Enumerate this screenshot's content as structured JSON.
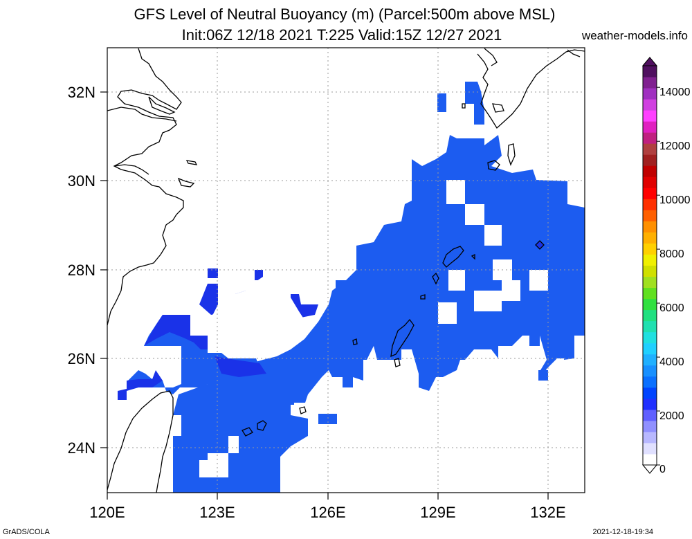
{
  "title_line1": "GFS Level of Neutral Buoyancy (m) (Parcel:500m above MSL)",
  "title_line2": "Init:06Z 12/18 2021 T:225 Valid:15Z 12/27 2021",
  "site": "weather-models.info",
  "footer_left": "GrADS/COLA",
  "footer_right": "2021-12-18-19:34",
  "lon_labels": [
    "120E",
    "123E",
    "126E",
    "129E",
    "132E"
  ],
  "lat_labels": [
    "24N",
    "26N",
    "28N",
    "30N",
    "32N"
  ],
  "colorbar": {
    "labels": [
      "0",
      "2000",
      "4000",
      "6000",
      "8000",
      "10000",
      "12000",
      "14000"
    ],
    "colors": [
      "#ffffff",
      "#e0e0ff",
      "#b8b8ff",
      "#9090ff",
      "#6060ff",
      "#2030ff",
      "#0044ff",
      "#0a70ff",
      "#1890ff",
      "#20b0ff",
      "#20d0ff",
      "#20e0e0",
      "#20e0b0",
      "#20e080",
      "#30e040",
      "#60e020",
      "#a0e020",
      "#d0e000",
      "#f0f000",
      "#ffd000",
      "#ffb000",
      "#ff9000",
      "#ff6000",
      "#ff3000",
      "#ff0000",
      "#e00000",
      "#c00000",
      "#a02020",
      "#b04040",
      "#c02080",
      "#e020c0",
      "#ff40ff",
      "#d040e0",
      "#a030c0",
      "#802090",
      "#501060"
    ]
  }
}
